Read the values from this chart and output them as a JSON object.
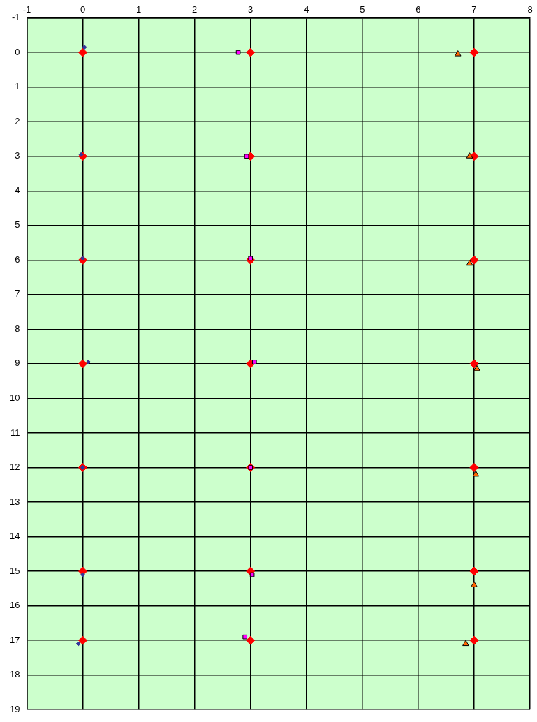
{
  "chart_data": {
    "type": "scatter",
    "xlim": [
      -1,
      8
    ],
    "xticks": [
      -1,
      0,
      1,
      2,
      3,
      4,
      5,
      6,
      7,
      8
    ],
    "ylim": [
      19,
      -1
    ],
    "yticks": [
      -1,
      0,
      1,
      2,
      3,
      4,
      5,
      6,
      7,
      8,
      9,
      10,
      11,
      12,
      13,
      14,
      15,
      16,
      17,
      18,
      19
    ],
    "grid": true,
    "legend": false,
    "series": [
      {
        "color": "#333399",
        "marker": "diamond",
        "x": [
          0.03,
          -0.03,
          0,
          0.1,
          0,
          0,
          -0.08
        ],
        "values": [
          -0.15,
          2.95,
          5.95,
          8.95,
          12,
          15.1,
          17.1
        ]
      },
      {
        "color": "#ff0000",
        "marker": "diamond",
        "x": [
          0,
          0,
          0,
          0,
          0,
          0,
          0,
          3,
          3,
          3,
          3,
          3,
          3,
          3,
          7,
          7,
          7,
          7,
          7,
          7,
          7
        ],
        "values": [
          0,
          3,
          6,
          9,
          12,
          15,
          17,
          0,
          3,
          6,
          9,
          12,
          15,
          17,
          0,
          3,
          6,
          9,
          12,
          15,
          17
        ]
      },
      {
        "color": "#ff00ff",
        "marker": "square",
        "x": [
          2.78,
          2.93,
          3,
          3.07,
          3,
          3.03,
          2.9
        ],
        "values": [
          0,
          3,
          5.95,
          8.95,
          12,
          15.1,
          16.9
        ]
      },
      {
        "color": "#ff6600",
        "marker": "triangle",
        "x": [
          6.71,
          6.92,
          6.92,
          7.05,
          7.03,
          7,
          6.85
        ],
        "values": [
          0.05,
          3,
          6.1,
          9.15,
          12.2,
          15.4,
          17.1
        ]
      }
    ]
  }
}
